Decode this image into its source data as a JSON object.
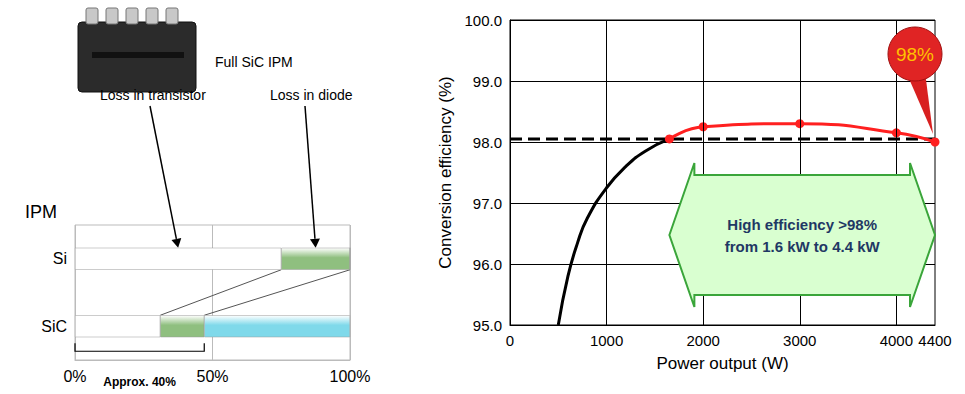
{
  "chart_data": [
    {
      "type": "bar",
      "orientation": "horizontal",
      "stacked": true,
      "y_label": "IPM",
      "categories": [
        "Si",
        "SiC"
      ],
      "series": [
        {
          "name": "Loss in transistor",
          "color": "#ffffff",
          "values": [
            75,
            31
          ]
        },
        {
          "name": "Loss in diode",
          "color": "#8fbf7f",
          "values": [
            25,
            16
          ]
        },
        {
          "color": "#7fd9ea",
          "values": [
            0,
            53
          ]
        }
      ],
      "xlim": [
        0,
        100
      ],
      "xticks": [
        {
          "value": 0,
          "label": "0%"
        },
        {
          "value": 50,
          "label": "50%"
        },
        {
          "value": 100,
          "label": "100%"
        }
      ],
      "grid": true,
      "annotations": [
        "Full SiC IPM",
        "Approx. 40%"
      ]
    },
    {
      "type": "line",
      "x_label": "Power output (W)",
      "y_label": "Conversion efficiency (%)",
      "series": [
        {
          "color": "#000000",
          "line_style": "dashed",
          "x": [
            0,
            4400
          ],
          "values": [
            98.05,
            98.05
          ]
        },
        {
          "color": "#000000",
          "line_style": "solid",
          "x": [
            500,
            600,
            700,
            800,
            1000,
            1200,
            1400,
            1650
          ],
          "values": [
            95.0,
            95.8,
            96.35,
            96.75,
            97.25,
            97.6,
            97.85,
            98.05
          ]
        },
        {
          "color": "#ff2020",
          "line_style": "solid",
          "marker": "circle",
          "x": [
            1650,
            2000,
            3000,
            4000,
            4400
          ],
          "values": [
            98.05,
            98.25,
            98.3,
            98.15,
            98.0
          ]
        }
      ],
      "xlim": [
        0,
        4400
      ],
      "xticks": [
        0,
        1000,
        2000,
        3000,
        4000,
        4400
      ],
      "ylim": [
        95,
        100
      ],
      "yticks": [
        {
          "value": 95,
          "label": "95.0"
        },
        {
          "value": 96,
          "label": "96.0"
        },
        {
          "value": 97,
          "label": "97.0"
        },
        {
          "value": 98,
          "label": "98.0"
        },
        {
          "value": 99,
          "label": "99.0"
        },
        {
          "value": 100,
          "label": "100.0"
        }
      ],
      "grid": true,
      "annotations": [
        "98%",
        "High efficiency >98%\nfrom 1.6 kW to 4.4 kW"
      ]
    }
  ]
}
